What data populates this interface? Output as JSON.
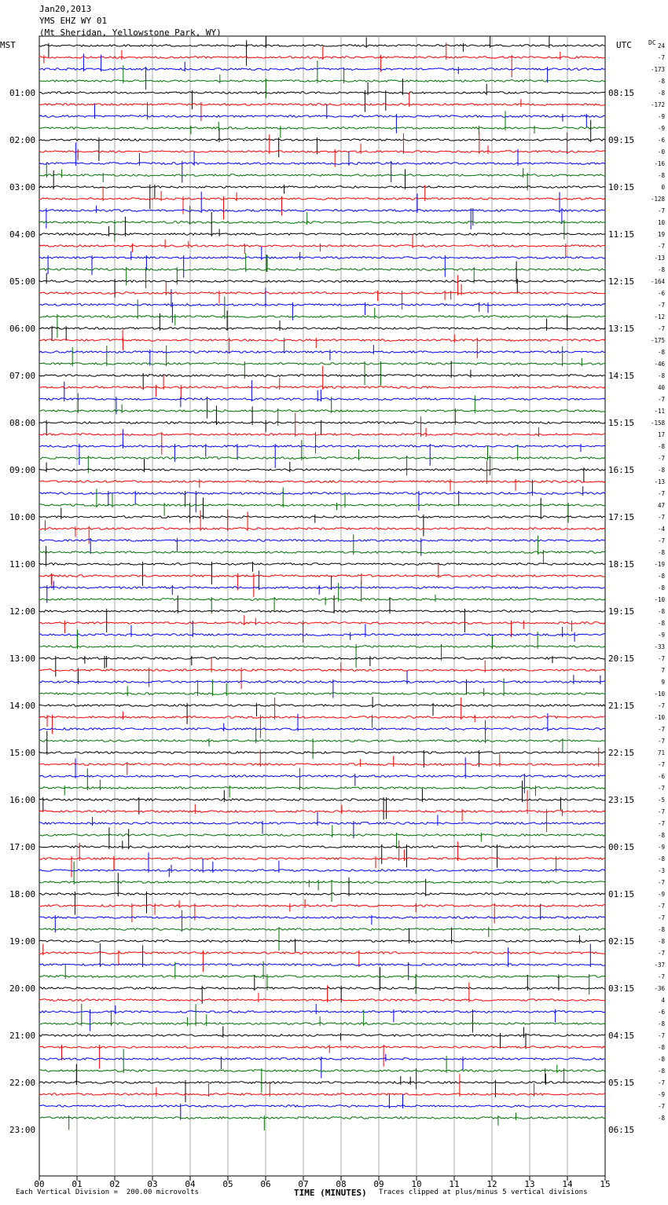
{
  "header": {
    "date": "Jan20,2013",
    "station": "YMS EHZ WY 01",
    "location": "(Mt Sheridan, Yellowstone Park, WY)"
  },
  "left_tz": "MST",
  "right_tz": "UTC",
  "dc_label": "DC",
  "colors": [
    "#000000",
    "#ff0000",
    "#0000ff",
    "#007000"
  ],
  "chart_data": {
    "type": "line",
    "title": "",
    "xlabel": "TIME (MINUTES)",
    "xlim": [
      0,
      15
    ],
    "x_ticks": [
      "00",
      "01",
      "02",
      "03",
      "04",
      "05",
      "06",
      "07",
      "08",
      "09",
      "10",
      "11",
      "12",
      "13",
      "14",
      "15"
    ],
    "left_hour_labels": [
      "01:00",
      "02:00",
      "03:00",
      "04:00",
      "05:00",
      "06:00",
      "07:00",
      "08:00",
      "09:00",
      "10:00",
      "11:00",
      "12:00",
      "13:00",
      "14:00",
      "15:00",
      "16:00",
      "17:00",
      "18:00",
      "19:00",
      "20:00",
      "21:00",
      "22:00",
      "23:00"
    ],
    "right_hour_labels": [
      "08:15",
      "09:15",
      "10:15",
      "11:15",
      "12:15",
      "13:15",
      "14:15",
      "15:15",
      "16:15",
      "17:15",
      "18:15",
      "19:15",
      "20:15",
      "21:15",
      "22:15",
      "23:15",
      "00:15",
      "01:15",
      "02:15",
      "03:15",
      "04:15",
      "05:15",
      "06:15"
    ],
    "dc_offsets": [
      "24",
      "-7",
      "-173",
      "-8",
      "-8",
      "-172",
      "-9",
      "-9",
      "-6",
      "-0",
      "-16",
      "-8",
      "0",
      "-128",
      "-7",
      "10",
      "19",
      "-7",
      "-13",
      "-8",
      "-164",
      "-6",
      "-7",
      "-12",
      "-7",
      "-175",
      "-8",
      "-46",
      "-8",
      "40",
      "-7",
      "-11",
      "-158",
      "17",
      "-8",
      "-7",
      "-8",
      "-13",
      "-7",
      "47",
      "-7",
      "-4",
      "-7",
      "-8",
      "-19",
      "-8",
      "-8",
      "-10",
      "-8",
      "-8",
      "-9",
      "-33",
      "-7",
      "7",
      "9",
      "-10",
      "-7",
      "-10",
      "-7",
      "-7",
      "71",
      "-7",
      "-6",
      "-7",
      "-5",
      "-7",
      "-7",
      "-8",
      "-9",
      "-8",
      "-3",
      "-7",
      "-9",
      "-7",
      "-7",
      "-8",
      "-8",
      "-7",
      "-37",
      "-7",
      "-36",
      "4",
      "-6",
      "-8",
      "-7",
      "-8",
      "-8",
      "-8",
      "-7",
      "-9",
      "-7",
      "-8"
    ],
    "footer_left": "Each Vertical Division =  200.00 microvolts",
    "footer_right": "Traces clipped at plus/minus 5 vertical divisions"
  }
}
